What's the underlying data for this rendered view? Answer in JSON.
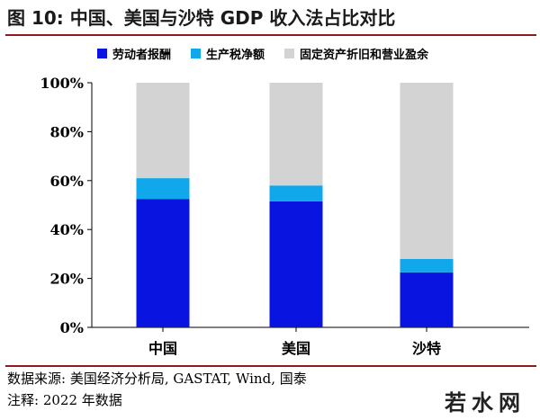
{
  "header": {
    "title": "图 10:  中国、美国与沙特 GDP 收入法占比对比"
  },
  "chart_data": {
    "type": "bar",
    "stacked": true,
    "categories": [
      "中国",
      "美国",
      "沙特"
    ],
    "series": [
      {
        "name": "劳动者报酬",
        "color": "#0a14e0",
        "values": [
          52.5,
          51.5,
          22.5
        ]
      },
      {
        "name": "生产税净额",
        "color": "#10a8ea",
        "values": [
          8.5,
          6.5,
          5.5
        ]
      },
      {
        "name": "固定资产折旧和营业盈余",
        "color": "#d3d3d3",
        "values": [
          39.0,
          42.0,
          72.0
        ]
      }
    ],
    "yticks": [
      "0%",
      "20%",
      "40%",
      "60%",
      "80%",
      "100%"
    ],
    "ylim": [
      0,
      100
    ],
    "grid": false,
    "legend_position": "top"
  },
  "footer": {
    "source": "数据来源: 美国经济分析局, GASTAT, Wind, 国泰",
    "remark": "注释: 2022 年数据"
  },
  "watermark": {
    "text": "若水网"
  }
}
